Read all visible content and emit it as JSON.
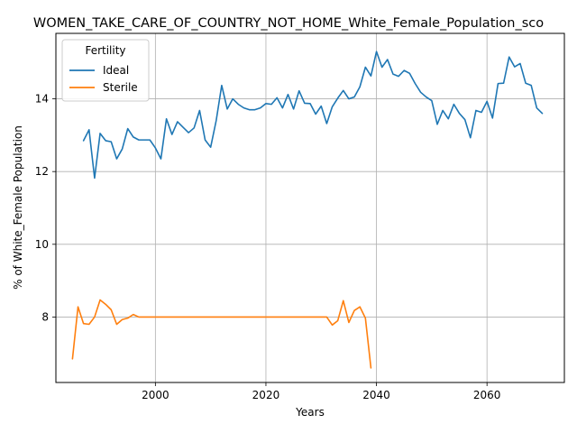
{
  "chart_data": {
    "type": "line",
    "title": "WOMEN_TAKE_CARE_OF_COUNTRY_NOT_HOME_White_Female_Population_sco",
    "xlabel": "Years",
    "ylabel": "% of White_Female Population",
    "xlim": [
      1982,
      2074
    ],
    "ylim": [
      6.2,
      15.8
    ],
    "xticks": [
      2000,
      2020,
      2040,
      2060
    ],
    "yticks": [
      8,
      10,
      12,
      14
    ],
    "grid": true,
    "legend": {
      "title": "Fertility",
      "placement": "top-left"
    },
    "series": [
      {
        "name": "Ideal",
        "color": "#1f77b4",
        "points": [
          [
            1987,
            12.85
          ],
          [
            1988,
            13.15
          ],
          [
            1989,
            11.82
          ],
          [
            1990,
            13.05
          ],
          [
            1991,
            12.85
          ],
          [
            1992,
            12.82
          ],
          [
            1993,
            12.35
          ],
          [
            1994,
            12.62
          ],
          [
            1995,
            13.18
          ],
          [
            1996,
            12.95
          ],
          [
            1997,
            12.87
          ],
          [
            1998,
            12.87
          ],
          [
            1999,
            12.87
          ],
          [
            2000,
            12.65
          ],
          [
            2001,
            12.35
          ],
          [
            2002,
            13.45
          ],
          [
            2003,
            13.02
          ],
          [
            2004,
            13.37
          ],
          [
            2005,
            13.22
          ],
          [
            2006,
            13.07
          ],
          [
            2007,
            13.2
          ],
          [
            2008,
            13.68
          ],
          [
            2009,
            12.87
          ],
          [
            2010,
            12.67
          ],
          [
            2011,
            13.4
          ],
          [
            2012,
            14.37
          ],
          [
            2013,
            13.72
          ],
          [
            2014,
            14.0
          ],
          [
            2015,
            13.85
          ],
          [
            2016,
            13.75
          ],
          [
            2017,
            13.7
          ],
          [
            2018,
            13.7
          ],
          [
            2019,
            13.75
          ],
          [
            2020,
            13.87
          ],
          [
            2021,
            13.85
          ],
          [
            2022,
            14.03
          ],
          [
            2023,
            13.75
          ],
          [
            2024,
            14.12
          ],
          [
            2025,
            13.72
          ],
          [
            2026,
            14.22
          ],
          [
            2027,
            13.88
          ],
          [
            2028,
            13.87
          ],
          [
            2029,
            13.58
          ],
          [
            2030,
            13.8
          ],
          [
            2031,
            13.32
          ],
          [
            2032,
            13.78
          ],
          [
            2033,
            14.02
          ],
          [
            2034,
            14.23
          ],
          [
            2035,
            14.0
          ],
          [
            2036,
            14.05
          ],
          [
            2037,
            14.33
          ],
          [
            2038,
            14.87
          ],
          [
            2039,
            14.63
          ],
          [
            2040,
            15.3
          ],
          [
            2041,
            14.87
          ],
          [
            2042,
            15.08
          ],
          [
            2043,
            14.68
          ],
          [
            2044,
            14.62
          ],
          [
            2045,
            14.78
          ],
          [
            2046,
            14.7
          ],
          [
            2047,
            14.42
          ],
          [
            2048,
            14.18
          ],
          [
            2049,
            14.05
          ],
          [
            2050,
            13.95
          ],
          [
            2051,
            13.3
          ],
          [
            2052,
            13.68
          ],
          [
            2053,
            13.45
          ],
          [
            2054,
            13.85
          ],
          [
            2055,
            13.6
          ],
          [
            2056,
            13.43
          ],
          [
            2057,
            12.93
          ],
          [
            2058,
            13.68
          ],
          [
            2059,
            13.63
          ],
          [
            2060,
            13.93
          ],
          [
            2061,
            13.47
          ],
          [
            2062,
            14.42
          ],
          [
            2063,
            14.43
          ],
          [
            2064,
            15.15
          ],
          [
            2065,
            14.88
          ],
          [
            2066,
            14.97
          ],
          [
            2067,
            14.43
          ],
          [
            2068,
            14.37
          ],
          [
            2069,
            13.75
          ],
          [
            2070,
            13.6
          ]
        ]
      },
      {
        "name": "Sterile",
        "color": "#ff7f0e",
        "points": [
          [
            1985,
            6.85
          ],
          [
            1986,
            8.28
          ],
          [
            1987,
            7.82
          ],
          [
            1988,
            7.8
          ],
          [
            1989,
            8.0
          ],
          [
            1990,
            8.47
          ],
          [
            1991,
            8.35
          ],
          [
            1992,
            8.2
          ],
          [
            1993,
            7.8
          ],
          [
            1994,
            7.93
          ],
          [
            1995,
            7.97
          ],
          [
            1996,
            8.07
          ],
          [
            1997,
            8.0
          ],
          [
            1998,
            8.0
          ],
          [
            1999,
            8.0
          ],
          [
            2000,
            8.0
          ],
          [
            2005,
            8.0
          ],
          [
            2010,
            8.0
          ],
          [
            2015,
            8.0
          ],
          [
            2020,
            8.0
          ],
          [
            2025,
            8.0
          ],
          [
            2030,
            8.0
          ],
          [
            2031,
            8.0
          ],
          [
            2032,
            7.78
          ],
          [
            2033,
            7.9
          ],
          [
            2034,
            8.45
          ],
          [
            2035,
            7.85
          ],
          [
            2036,
            8.18
          ],
          [
            2037,
            8.28
          ],
          [
            2038,
            7.97
          ],
          [
            2039,
            6.6
          ]
        ]
      }
    ]
  }
}
